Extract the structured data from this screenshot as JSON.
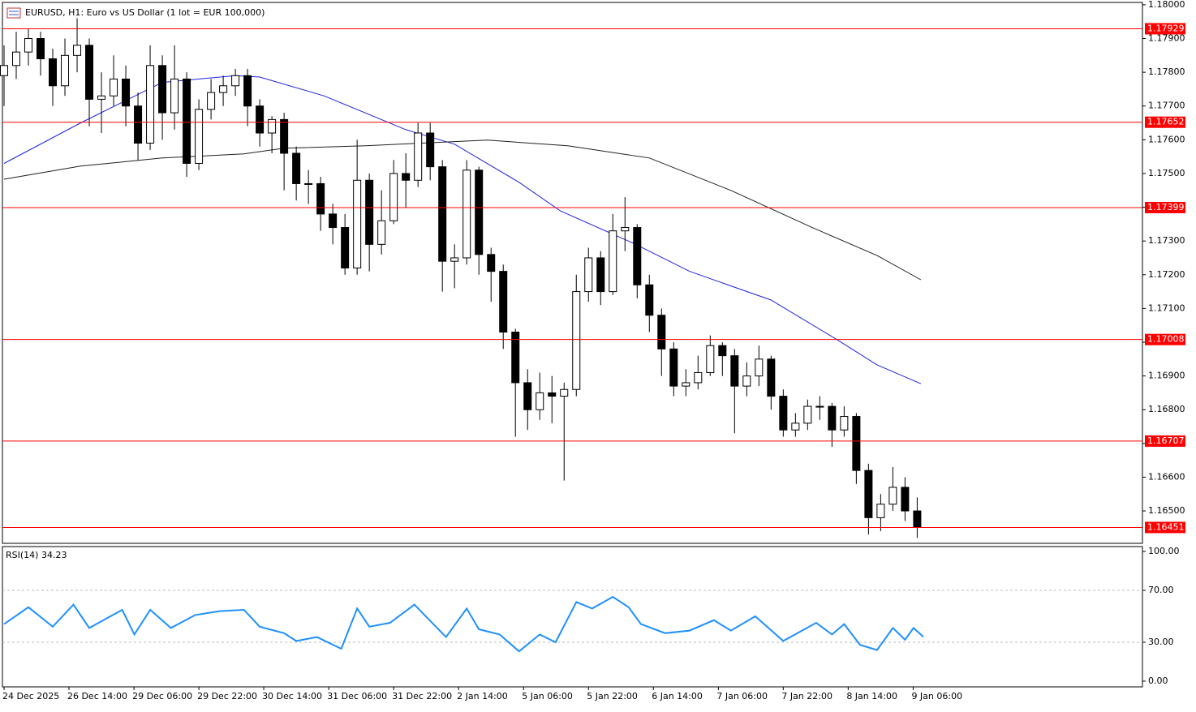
{
  "chart_data": [
    {
      "type": "candlestick",
      "title": "EURUSD, H1:  Euro vs US Dollar (1 lot = EUR 100,000)",
      "candles": [
        [
          1.1779,
          1.1788,
          1.177,
          1.1782
        ],
        [
          1.1782,
          1.1792,
          1.1778,
          1.1786
        ],
        [
          1.1786,
          1.1793,
          1.1782,
          1.179
        ],
        [
          1.179,
          1.1792,
          1.1779,
          1.1784
        ],
        [
          1.1784,
          1.1787,
          1.177,
          1.1776
        ],
        [
          1.1776,
          1.179,
          1.1773,
          1.1785
        ],
        [
          1.1785,
          1.1796,
          1.178,
          1.1788
        ],
        [
          1.1788,
          1.179,
          1.1764,
          1.1772
        ],
        [
          1.1772,
          1.178,
          1.1762,
          1.1773
        ],
        [
          1.1773,
          1.1785,
          1.177,
          1.1778
        ],
        [
          1.1778,
          1.1782,
          1.1764,
          1.177
        ],
        [
          1.177,
          1.1774,
          1.1754,
          1.1759
        ],
        [
          1.1759,
          1.1788,
          1.1757,
          1.1782
        ],
        [
          1.1782,
          1.1785,
          1.176,
          1.1768
        ],
        [
          1.1768,
          1.1788,
          1.1763,
          1.1778
        ],
        [
          1.1778,
          1.178,
          1.1749,
          1.1753
        ],
        [
          1.1753,
          1.1772,
          1.1751,
          1.1769
        ],
        [
          1.1769,
          1.1778,
          1.1766,
          1.1774
        ],
        [
          1.1774,
          1.1779,
          1.177,
          1.1776
        ],
        [
          1.1776,
          1.1781,
          1.1773,
          1.1779
        ],
        [
          1.1779,
          1.1781,
          1.1764,
          1.177
        ],
        [
          1.177,
          1.1772,
          1.1758,
          1.1762
        ],
        [
          1.1762,
          1.1767,
          1.1756,
          1.1766
        ],
        [
          1.1766,
          1.1768,
          1.1745,
          1.1756
        ],
        [
          1.1756,
          1.1758,
          1.1742,
          1.1747
        ],
        [
          1.1747,
          1.1751,
          1.1741,
          1.1747
        ],
        [
          1.1747,
          1.1749,
          1.1733,
          1.1738
        ],
        [
          1.1738,
          1.1741,
          1.1729,
          1.1734
        ],
        [
          1.1734,
          1.1738,
          1.172,
          1.1722
        ],
        [
          1.1722,
          1.176,
          1.172,
          1.1748
        ],
        [
          1.1748,
          1.175,
          1.1721,
          1.1729
        ],
        [
          1.1729,
          1.1745,
          1.1726,
          1.1736
        ],
        [
          1.1736,
          1.1754,
          1.1735,
          1.175
        ],
        [
          1.175,
          1.1756,
          1.174,
          1.1748
        ],
        [
          1.1748,
          1.1765,
          1.1746,
          1.1762
        ],
        [
          1.1762,
          1.1765,
          1.1748,
          1.1752
        ],
        [
          1.1752,
          1.1754,
          1.1715,
          1.1724
        ],
        [
          1.1724,
          1.1729,
          1.1716,
          1.1725
        ],
        [
          1.1725,
          1.1754,
          1.1723,
          1.1751
        ],
        [
          1.1751,
          1.1752,
          1.172,
          1.1726
        ],
        [
          1.1726,
          1.1728,
          1.1712,
          1.1721
        ],
        [
          1.1721,
          1.1723,
          1.1698,
          1.1703
        ],
        [
          1.1703,
          1.1704,
          1.1672,
          1.1688
        ],
        [
          1.1688,
          1.1692,
          1.1674,
          1.168
        ],
        [
          1.168,
          1.1691,
          1.1677,
          1.1685
        ],
        [
          1.1685,
          1.169,
          1.1676,
          1.1684
        ],
        [
          1.1684,
          1.1688,
          1.1659,
          1.1686
        ],
        [
          1.1686,
          1.172,
          1.1684,
          1.1715
        ],
        [
          1.1715,
          1.1728,
          1.1712,
          1.1725
        ],
        [
          1.1725,
          1.1727,
          1.1711,
          1.1715
        ],
        [
          1.1715,
          1.1738,
          1.1714,
          1.1733
        ],
        [
          1.1733,
          1.1743,
          1.1727,
          1.1734
        ],
        [
          1.1734,
          1.1735,
          1.1713,
          1.1717
        ],
        [
          1.1717,
          1.172,
          1.1703,
          1.1708
        ],
        [
          1.1708,
          1.171,
          1.169,
          1.1698
        ],
        [
          1.1698,
          1.17,
          1.1684,
          1.1687
        ],
        [
          1.1687,
          1.1692,
          1.1684,
          1.1688
        ],
        [
          1.1688,
          1.1696,
          1.1686,
          1.1691
        ],
        [
          1.1691,
          1.1702,
          1.169,
          1.1699
        ],
        [
          1.1699,
          1.17,
          1.169,
          1.1696
        ],
        [
          1.1696,
          1.1698,
          1.1673,
          1.1687
        ],
        [
          1.1687,
          1.1694,
          1.1684,
          1.169
        ],
        [
          1.169,
          1.1699,
          1.1687,
          1.1695
        ],
        [
          1.1695,
          1.1696,
          1.168,
          1.1684
        ],
        [
          1.1684,
          1.1686,
          1.1672,
          1.1674
        ],
        [
          1.1674,
          1.1679,
          1.1672,
          1.1676
        ],
        [
          1.1676,
          1.1683,
          1.1674,
          1.1681
        ],
        [
          1.1681,
          1.1684,
          1.1677,
          1.1681
        ],
        [
          1.1681,
          1.1682,
          1.1669,
          1.1674
        ],
        [
          1.1674,
          1.1681,
          1.1672,
          1.1678
        ],
        [
          1.1678,
          1.1679,
          1.1658,
          1.1662
        ],
        [
          1.1662,
          1.1664,
          1.1643,
          1.1648
        ],
        [
          1.1648,
          1.1655,
          1.1644,
          1.1652
        ],
        [
          1.1652,
          1.1663,
          1.165,
          1.1657
        ],
        [
          1.1657,
          1.166,
          1.1647,
          1.165
        ],
        [
          1.165,
          1.1654,
          1.1642,
          1.16451
        ]
      ],
      "up_color": "#ffffff",
      "down_color": "#000000",
      "xlim": [
        0,
        93.5
      ],
      "xticks": [
        {
          "value": 0,
          "label": "24 Dec 2025"
        },
        {
          "value": 5.33,
          "label": "26 Dec 14:00"
        },
        {
          "value": 10.67,
          "label": "29 Dec 06:00"
        },
        {
          "value": 16,
          "label": "29 Dec 22:00"
        },
        {
          "value": 21.33,
          "label": "30 Dec 14:00"
        },
        {
          "value": 26.67,
          "label": "31 Dec 06:00"
        },
        {
          "value": 32,
          "label": "31 Dec 22:00"
        },
        {
          "value": 37.33,
          "label": "2 Jan 14:00"
        },
        {
          "value": 42.67,
          "label": "5 Jan 06:00"
        },
        {
          "value": 48,
          "label": "5 Jan 22:00"
        },
        {
          "value": 53.33,
          "label": "6 Jan 14:00"
        },
        {
          "value": 58.67,
          "label": "7 Jan 06:00"
        },
        {
          "value": 64,
          "label": "7 Jan 22:00"
        },
        {
          "value": 69.33,
          "label": "8 Jan 14:00"
        },
        {
          "value": 74.67,
          "label": "9 Jan 06:00"
        }
      ],
      "ylim": [
        1.16404,
        1.18007
      ],
      "yticks": [
        {
          "value": 1.18,
          "label": "1.18000"
        },
        {
          "value": 1.179,
          "label": "1.17900"
        },
        {
          "value": 1.178,
          "label": "1.17800"
        },
        {
          "value": 1.177,
          "label": "1.17700"
        },
        {
          "value": 1.176,
          "label": "1.17600"
        },
        {
          "value": 1.175,
          "label": "1.17500"
        },
        {
          "value": 1.174,
          "label": "1.17400"
        },
        {
          "value": 1.173,
          "label": "1.17300"
        },
        {
          "value": 1.172,
          "label": "1.17200"
        },
        {
          "value": 1.171,
          "label": "1.17100"
        },
        {
          "value": 1.17,
          "label": "1.17000"
        },
        {
          "value": 1.169,
          "label": "1.16900"
        },
        {
          "value": 1.168,
          "label": "1.16800"
        },
        {
          "value": 1.167,
          "label": "1.16700"
        },
        {
          "value": 1.166,
          "label": "1.16600"
        },
        {
          "value": 1.165,
          "label": "1.16500"
        }
      ],
      "levels": [
        1.17929,
        1.17652,
        1.17399,
        1.17008,
        1.16707,
        1.16451
      ],
      "level_color": "#ff0000",
      "series": [
        {
          "color": "#2020e0",
          "x": [
            0,
            6.3,
            13,
            19,
            21,
            26.3,
            33,
            37,
            42.3,
            45.7,
            51.7,
            56.3,
            63,
            68.3,
            71.7,
            75.3
          ],
          "values": [
            1.1753,
            1.1765,
            1.1777,
            1.1779,
            1.17786,
            1.1773,
            1.1763,
            1.17587,
            1.17474,
            1.17389,
            1.17293,
            1.1721,
            1.17125,
            1.1701,
            1.16933,
            1.16877
          ]
        },
        {
          "color": "#202020",
          "x": [
            0,
            6.3,
            13,
            19.7,
            23,
            29.7,
            34.3,
            39.7,
            46.3,
            53,
            59.7,
            66.3,
            71.7,
            75.3
          ],
          "values": [
            1.17483,
            1.17522,
            1.17546,
            1.17558,
            1.17575,
            1.17582,
            1.1759,
            1.17599,
            1.17582,
            1.17546,
            1.1745,
            1.17341,
            1.17257,
            1.17185
          ]
        }
      ]
    },
    {
      "type": "line",
      "title": "RSI(14) 34.23",
      "color": "#1e90ff",
      "x": [
        0,
        2,
        4,
        5.7,
        7,
        9.7,
        10.7,
        12,
        13.7,
        15.7,
        17.7,
        19.7,
        21,
        23,
        24,
        25.7,
        27.7,
        29,
        30,
        31.7,
        33.7,
        36.3,
        38,
        39,
        40.7,
        42.3,
        44,
        45.3,
        47,
        48.3,
        50,
        51.3,
        52.3,
        54.3,
        56.3,
        58.3,
        59.7,
        61.7,
        64,
        66.7,
        68,
        69,
        70.3,
        71.7,
        73,
        74,
        74.7,
        75.5
      ],
      "values": [
        44,
        57,
        42,
        59,
        41,
        55,
        36,
        55,
        41,
        51,
        54,
        55,
        42,
        37,
        31,
        34,
        25,
        56,
        42,
        45,
        59,
        34,
        56,
        40,
        36,
        23,
        36,
        30,
        61,
        56,
        65,
        57,
        44,
        37,
        39,
        47,
        39,
        50,
        31,
        45,
        36,
        44,
        28,
        24,
        41,
        32,
        41,
        34.23
      ],
      "xlim": [
        0,
        93.5
      ],
      "ylim": [
        -4.4,
        103.75
      ],
      "yticks": [
        {
          "value": 100,
          "label": "100.00"
        },
        {
          "value": 70,
          "label": "70.00"
        },
        {
          "value": 30,
          "label": "30.00"
        },
        {
          "value": 0,
          "label": "0.00"
        }
      ],
      "levels": [
        70,
        30
      ]
    }
  ]
}
